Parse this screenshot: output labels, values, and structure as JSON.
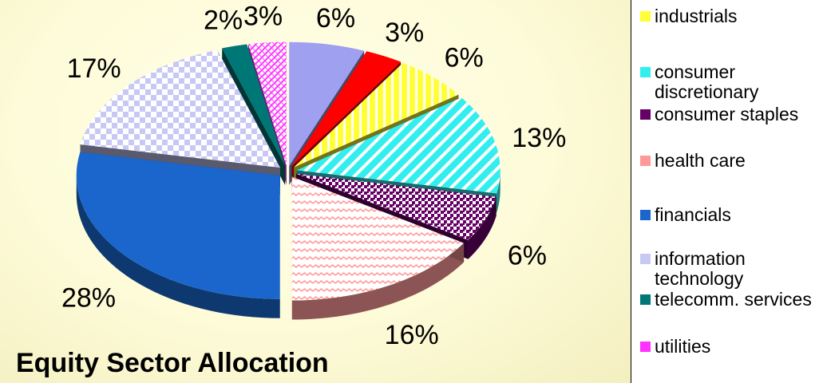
{
  "chart_data": {
    "type": "pie",
    "title": "Equity Sector Allocation",
    "series": [
      {
        "label": "6%",
        "value": 6,
        "color": "#a0a0f0",
        "pattern": "solid"
      },
      {
        "label": "3%",
        "value": 3,
        "color": "#ff0000",
        "pattern": "solid"
      },
      {
        "label": "6%",
        "value": 6,
        "color": "#ffff33",
        "pattern": "vstripes",
        "legend": "industrials"
      },
      {
        "label": "13%",
        "value": 13,
        "color": "#33eeee",
        "pattern": "diagstripes",
        "legend": "consumer discretionary"
      },
      {
        "label": "6%",
        "value": 6,
        "color": "#660066",
        "pattern": "dots",
        "legend": "consumer staples"
      },
      {
        "label": "16%",
        "value": 16,
        "color": "#ff9999",
        "pattern": "waves",
        "legend": "health care"
      },
      {
        "label": "28%",
        "value": 28,
        "color": "#1a66cc",
        "pattern": "solid",
        "legend": "financials"
      },
      {
        "label": "17%",
        "value": 17,
        "color": "#c8c8f4",
        "pattern": "checker",
        "legend": "information technology"
      },
      {
        "label": "2%",
        "value": 2,
        "color": "#007777",
        "pattern": "solid",
        "legend": "telecomm. services"
      },
      {
        "label": "3%",
        "value": 3,
        "color": "#ff33ff",
        "pattern": "zigzag",
        "legend": "utilities"
      }
    ]
  },
  "legend": {
    "items": [
      {
        "label": "industrials",
        "color": "#ffff33"
      },
      {
        "label": "consumer discretionary",
        "color": "#33eeee"
      },
      {
        "label": "consumer staples",
        "color": "#660066"
      },
      {
        "label": "health care",
        "color": "#ff9999"
      },
      {
        "label": "financials",
        "color": "#1a66cc"
      },
      {
        "label": "information technology",
        "color": "#c8c8f4"
      },
      {
        "label": "telecomm. services",
        "color": "#007777"
      },
      {
        "label": "utilities",
        "color": "#ff33ff"
      }
    ]
  }
}
